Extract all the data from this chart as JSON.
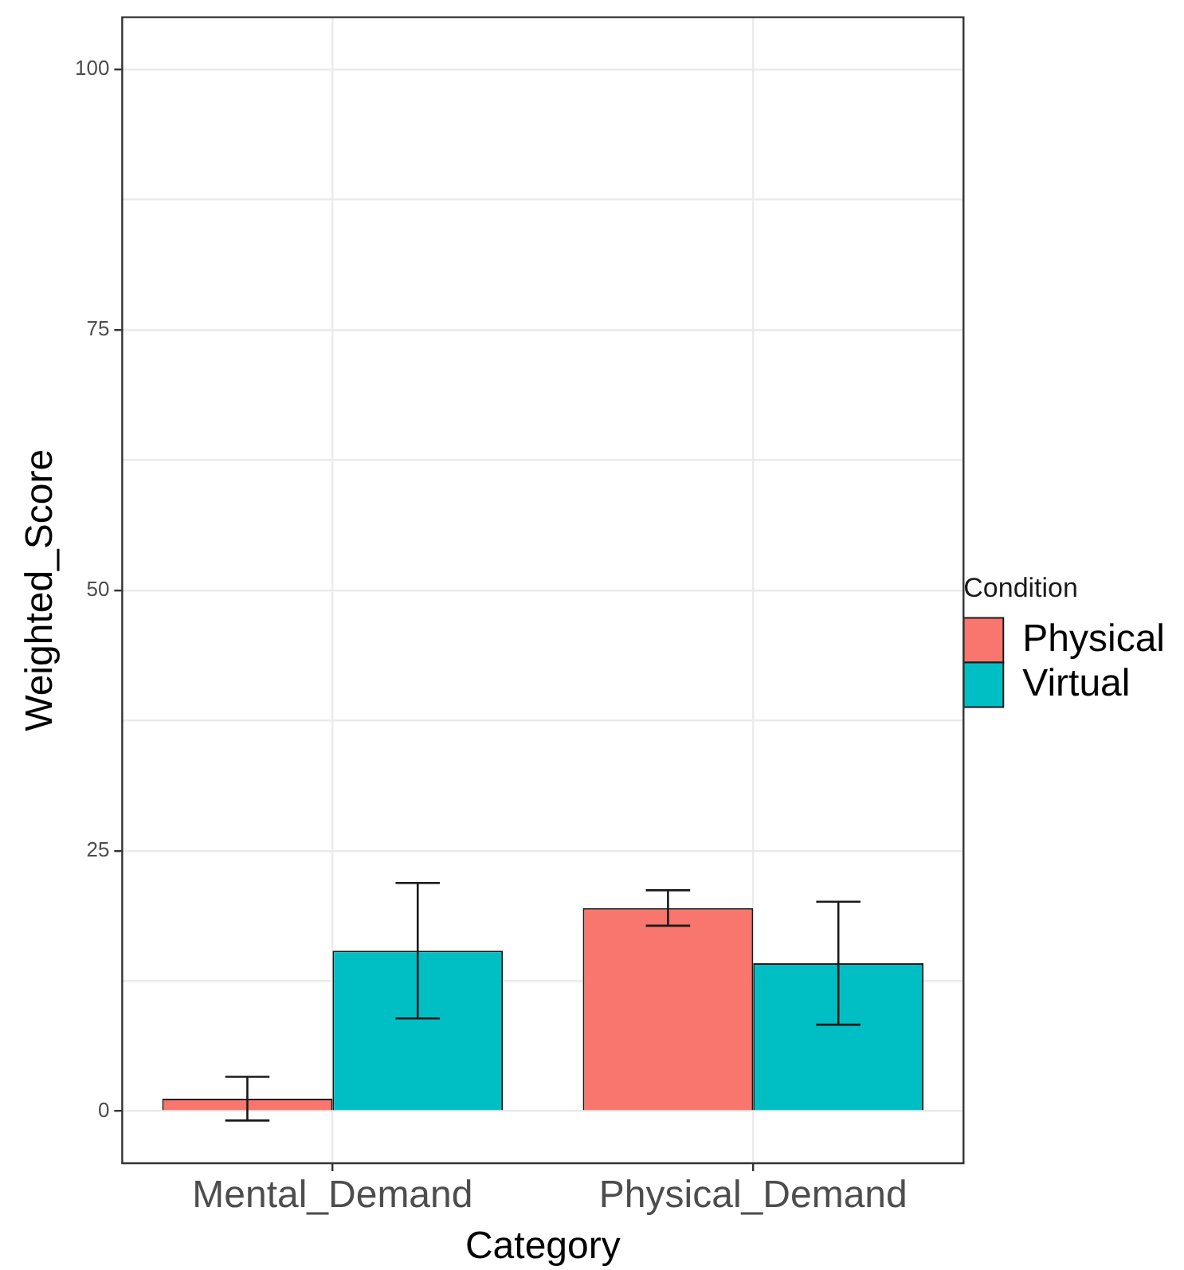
{
  "chart_data": {
    "type": "bar",
    "xlabel": "Category",
    "ylabel": "Weighted_Score",
    "legend_title": "Condition",
    "categories": [
      "Mental_Demand",
      "Physical_Demand"
    ],
    "series": [
      {
        "name": "Physical",
        "color": "#f8766d",
        "values": [
          1.2,
          19.5
        ],
        "errors": [
          2.1,
          1.7
        ]
      },
      {
        "name": "Virtual",
        "color": "#00bfc4",
        "values": [
          15.4,
          14.2
        ],
        "errors": [
          6.5,
          5.9
        ]
      }
    ],
    "ylim": [
      -5,
      105
    ],
    "yticks": [
      0,
      {
        "value": 12.5,
        "label": null
      },
      25,
      {
        "value": 37.5,
        "label": null
      },
      50,
      {
        "value": 62.5,
        "label": null
      },
      75,
      {
        "value": 87.5,
        "label": null
      },
      100
    ],
    "grid": true,
    "legend": "right"
  }
}
